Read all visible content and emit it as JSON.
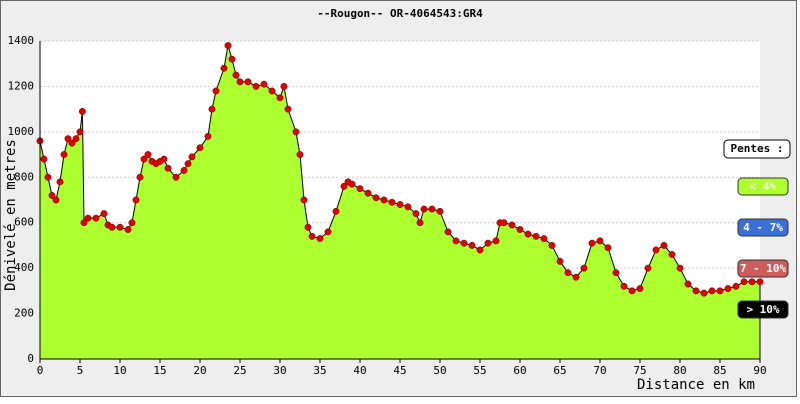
{
  "chart_data": {
    "type": "area",
    "title": "--Rougon-- OR-4064543:GR4",
    "x_label": "Distance en km",
    "y_label": "Dénivelé en metres",
    "x": [
      0,
      0.5,
      1,
      1.5,
      2,
      2.5,
      3,
      3.5,
      4,
      4.5,
      5,
      5.3,
      5.5,
      6,
      7,
      8,
      8.5,
      9,
      10,
      11,
      11.5,
      12,
      12.5,
      13,
      13.5,
      14,
      14.5,
      15,
      15.5,
      16,
      17,
      18,
      18.5,
      19,
      20,
      21,
      21.5,
      22,
      23,
      23.5,
      24,
      24.5,
      25,
      26,
      27,
      28,
      29,
      30,
      30.5,
      31,
      32,
      32.5,
      33,
      33.5,
      34,
      35,
      36,
      37,
      38,
      38.5,
      39,
      40,
      41,
      42,
      43,
      44,
      45,
      46,
      47,
      47.5,
      48,
      49,
      50,
      51,
      52,
      53,
      54,
      55,
      56,
      57,
      57.5,
      58,
      59,
      60,
      61,
      62,
      63,
      64,
      65,
      66,
      67,
      68,
      69,
      70,
      71,
      72,
      73,
      74,
      75,
      76,
      77,
      78,
      79,
      80,
      81,
      82,
      83,
      84,
      85,
      86,
      87,
      88,
      89,
      90
    ],
    "values": [
      960,
      880,
      800,
      720,
      700,
      780,
      900,
      970,
      950,
      970,
      1000,
      1090,
      600,
      620,
      620,
      640,
      590,
      580,
      580,
      570,
      600,
      700,
      800,
      880,
      900,
      870,
      860,
      870,
      880,
      840,
      800,
      830,
      860,
      890,
      930,
      980,
      1100,
      1180,
      1280,
      1380,
      1320,
      1250,
      1220,
      1220,
      1200,
      1210,
      1180,
      1150,
      1200,
      1100,
      1000,
      900,
      700,
      580,
      540,
      530,
      560,
      650,
      760,
      780,
      770,
      750,
      730,
      710,
      700,
      690,
      680,
      670,
      640,
      600,
      660,
      660,
      650,
      560,
      520,
      510,
      500,
      480,
      510,
      520,
      600,
      600,
      590,
      570,
      550,
      540,
      530,
      500,
      430,
      380,
      360,
      400,
      510,
      520,
      490,
      380,
      320,
      300,
      310,
      400,
      480,
      500,
      460,
      400,
      330,
      300,
      290,
      300,
      300,
      310,
      320,
      340,
      340,
      340
    ],
    "fill_color": "#adff2f",
    "point_color": "#e00000",
    "xlim": [
      0,
      90
    ],
    "xticks": [
      0,
      5,
      10,
      15,
      20,
      25,
      30,
      35,
      40,
      45,
      50,
      55,
      60,
      65,
      70,
      75,
      80,
      85,
      90
    ],
    "ylim": [
      0,
      1400
    ],
    "yticks": [
      0,
      200,
      400,
      600,
      800,
      1000,
      1200,
      1400
    ],
    "grid": true,
    "legend": {
      "title": "Pentes :",
      "items": [
        {
          "label": "< 4%",
          "color": "#adff2f"
        },
        {
          "label": "4 - 7%",
          "color": "#3a6fd8"
        },
        {
          "label": "7 - 10%",
          "color": "#cd5c5c"
        },
        {
          "label": "> 10%",
          "color": "#000000"
        }
      ]
    }
  }
}
